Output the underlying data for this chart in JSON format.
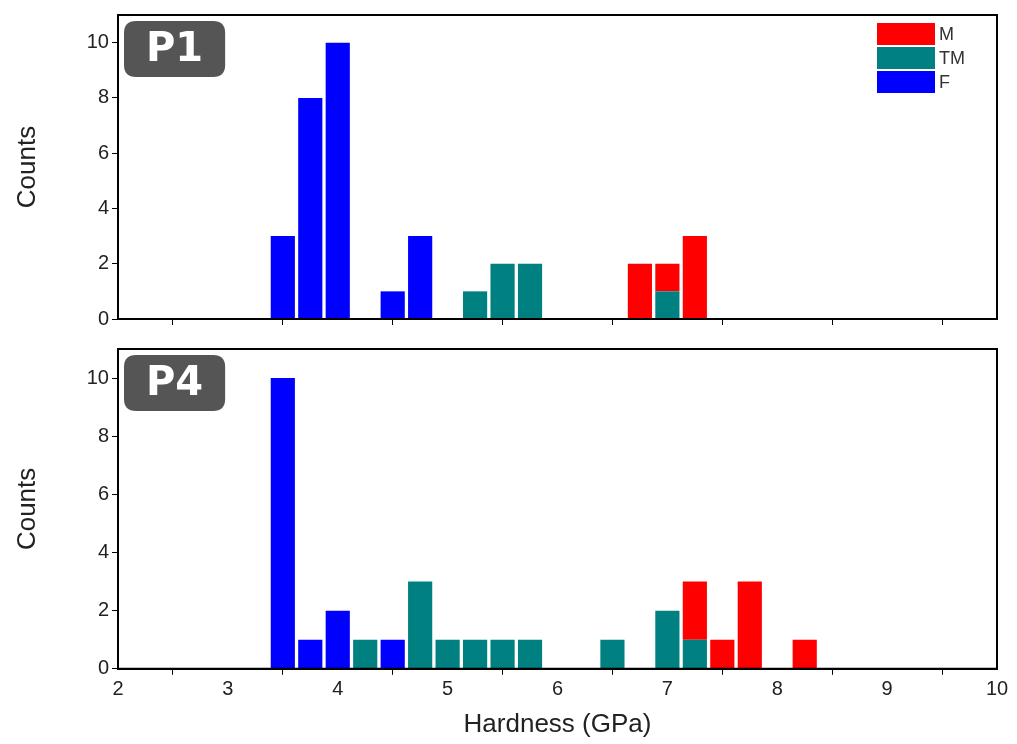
{
  "chart_data": [
    {
      "type": "bar",
      "title": "P1",
      "ylabel": "Counts",
      "stacked": true,
      "xlim": [
        2,
        10
      ],
      "xticks": [
        2,
        3,
        4,
        5,
        6,
        7,
        8,
        9,
        10
      ],
      "ylim": [
        0,
        11
      ],
      "yticks": [
        0,
        2,
        4,
        6,
        8,
        10
      ],
      "grid": false,
      "legend": "top right",
      "tick_labels": "y",
      "x": [
        3.5,
        3.75,
        4.0,
        4.5,
        4.75,
        5.25,
        5.5,
        5.75,
        6.75,
        7.0,
        7.25
      ],
      "series": [
        {
          "name": "F",
          "color": "#0000ff",
          "values": [
            3,
            8,
            10,
            1,
            3,
            null,
            null,
            null,
            null,
            null,
            null
          ]
        },
        {
          "name": "TM",
          "color": "#008080",
          "values": [
            null,
            null,
            null,
            null,
            null,
            1,
            2,
            2,
            null,
            1,
            null
          ]
        },
        {
          "name": "M",
          "color": "#ff0000",
          "values": [
            null,
            null,
            null,
            null,
            null,
            null,
            null,
            null,
            2,
            1,
            3
          ]
        }
      ]
    },
    {
      "type": "bar",
      "title": "P4",
      "xlabel": "Hardness (GPa)",
      "ylabel": "Counts",
      "stacked": true,
      "xlim": [
        2,
        10
      ],
      "xticks": [
        2,
        3,
        4,
        5,
        6,
        7,
        8,
        9,
        10
      ],
      "ylim": [
        0,
        11
      ],
      "yticks": [
        0,
        2,
        4,
        6,
        8,
        10
      ],
      "grid": false,
      "x": [
        3.5,
        3.75,
        4.0,
        4.25,
        4.5,
        4.75,
        5.0,
        5.25,
        5.5,
        5.75,
        6.5,
        7.0,
        7.25,
        7.5,
        7.75,
        8.25
      ],
      "series": [
        {
          "color": "#0000ff",
          "values": [
            10,
            1,
            2,
            null,
            1,
            null,
            null,
            null,
            null,
            null,
            null,
            null,
            null,
            null,
            null,
            null
          ]
        },
        {
          "color": "#008080",
          "values": [
            null,
            null,
            null,
            1,
            null,
            3,
            1,
            1,
            1,
            1,
            1,
            2,
            1,
            null,
            null,
            null
          ]
        },
        {
          "color": "#ff0000",
          "values": [
            null,
            null,
            null,
            null,
            null,
            null,
            null,
            null,
            null,
            null,
            null,
            null,
            2,
            1,
            3,
            1
          ]
        }
      ]
    }
  ]
}
